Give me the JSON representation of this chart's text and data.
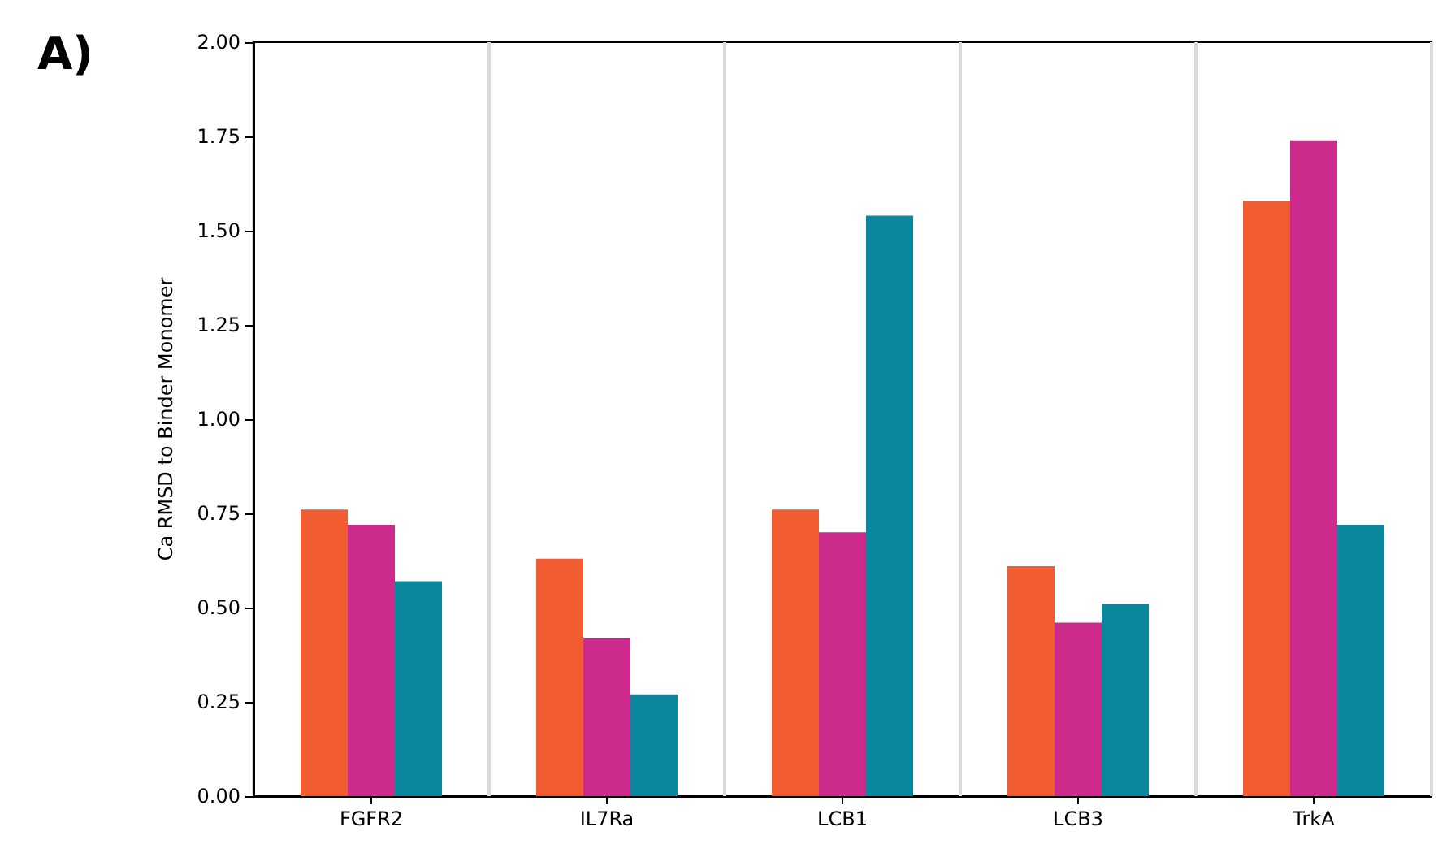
{
  "chart_data": {
    "type": "bar",
    "title": "A)",
    "ylabel": "Ca RMSD to Binder Monomer",
    "categories": [
      "FGFR2",
      "IL7Ra",
      "LCB1",
      "LCB3",
      "TrkA"
    ],
    "series": [
      {
        "color": "#f15d30",
        "values": [
          0.76,
          0.63,
          0.76,
          0.61,
          1.58
        ]
      },
      {
        "color": "#cc2a8c",
        "values": [
          0.72,
          0.42,
          0.7,
          0.46,
          1.74
        ]
      },
      {
        "color": "#0a879c",
        "values": [
          0.57,
          0.27,
          1.54,
          0.51,
          0.72
        ]
      }
    ],
    "ylim": [
      0,
      2
    ],
    "yticks": [
      {
        "value": 0,
        "label": "0.00"
      },
      {
        "value": 0.25,
        "label": "0.25"
      },
      {
        "value": 0.5,
        "label": "0.50"
      },
      {
        "value": 0.75,
        "label": "0.75"
      },
      {
        "value": 1,
        "label": "1.00"
      },
      {
        "value": 1.25,
        "label": "1.25"
      },
      {
        "value": 1.5,
        "label": "1.50"
      },
      {
        "value": 1.75,
        "label": "1.75"
      },
      {
        "value": 2,
        "label": "2.00"
      }
    ],
    "grid": "x"
  }
}
